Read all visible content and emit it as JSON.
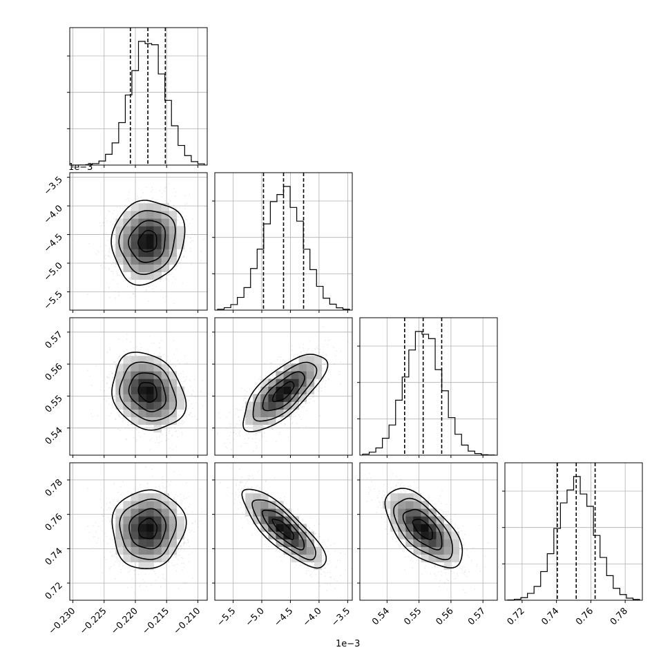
{
  "chart_data": {
    "type": "corner",
    "grid": true,
    "params": [
      {
        "range": [
          -0.2305,
          -0.2085
        ],
        "ticks": [
          -0.23,
          -0.225,
          -0.22,
          -0.215,
          -0.21
        ],
        "tick_labels": [
          "−0.230",
          "−0.225",
          "−0.220",
          "−0.215",
          "−0.210"
        ],
        "offset_label": "",
        "quantiles": [
          -0.2208,
          -0.218,
          -0.2152
        ],
        "mean": -0.218,
        "sd": 0.0028
      },
      {
        "range": [
          -5.82,
          -3.42
        ],
        "ticks": [
          -5.5,
          -5.0,
          -4.5,
          -4.0,
          -3.5
        ],
        "tick_labels": [
          "−5.5",
          "−5.0",
          "−4.5",
          "−4.0",
          "−3.5"
        ],
        "offset_label": "1e−3",
        "quantiles": [
          -4.97,
          -4.62,
          -4.27
        ],
        "mean": -4.62,
        "sd": 0.35
      },
      {
        "range": [
          0.5315,
          0.5745
        ],
        "ticks": [
          0.54,
          0.55,
          0.56,
          0.57
        ],
        "tick_labels": [
          "0.54",
          "0.55",
          "0.56",
          "0.57"
        ],
        "offset_label": "",
        "quantiles": [
          0.5455,
          0.5513,
          0.5571
        ],
        "mean": 0.5513,
        "sd": 0.0058
      },
      {
        "range": [
          0.71,
          0.79
        ],
        "ticks": [
          0.72,
          0.74,
          0.76,
          0.78
        ],
        "tick_labels": [
          "0.72",
          "0.74",
          "0.76",
          "0.78"
        ],
        "offset_label": "",
        "quantiles": [
          0.7405,
          0.7515,
          0.7625
        ],
        "mean": 0.7515,
        "sd": 0.011
      }
    ],
    "correlations": [
      {
        "pair": [
          1,
          0
        ],
        "rho": 0.1
      },
      {
        "pair": [
          2,
          0
        ],
        "rho": -0.2
      },
      {
        "pair": [
          2,
          1
        ],
        "rho": 0.72
      },
      {
        "pair": [
          3,
          0
        ],
        "rho": 0.05
      },
      {
        "pair": [
          3,
          1
        ],
        "rho": -0.82
      },
      {
        "pair": [
          3,
          2
        ],
        "rho": -0.62
      }
    ],
    "contour_levels": [
      0.12,
      0.39,
      0.68,
      0.86
    ],
    "hist_bins": 20
  }
}
